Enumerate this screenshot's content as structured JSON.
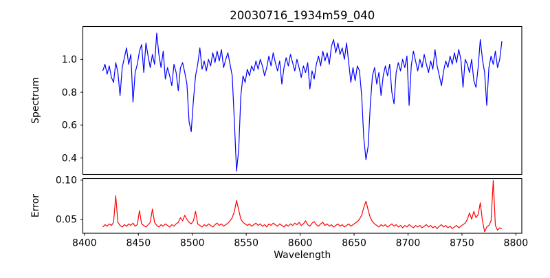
{
  "figure": {
    "title": "20030716_1934m59_040",
    "xlabel": "Wavelength",
    "ylabel_top": "Spectrum",
    "ylabel_bottom": "Error",
    "background_color": "#ffffff",
    "axis_color": "#000000"
  },
  "chart_data": [
    {
      "type": "line",
      "panel": "top",
      "name": "spectrum",
      "ylabel": "Spectrum",
      "line_color": "#0000ff",
      "xlim": [
        8398.5,
        8805.5
      ],
      "ylim": [
        0.3,
        1.2
      ],
      "yticks": [
        0.4,
        0.6,
        0.8,
        1.0
      ],
      "ytick_labels": [
        "0.4",
        "0.6",
        "0.8",
        "1.0"
      ],
      "grid": false,
      "x_start": 8417,
      "x_step": 2,
      "values": [
        0.93,
        0.97,
        0.91,
        0.96,
        0.89,
        0.86,
        0.98,
        0.92,
        0.78,
        0.95,
        1.01,
        1.07,
        0.97,
        1.03,
        0.74,
        0.92,
        0.97,
        1.05,
        1.09,
        0.92,
        1.1,
        1.02,
        0.95,
        1.03,
        0.97,
        1.16,
        1.03,
        0.95,
        1.05,
        0.88,
        0.95,
        0.9,
        0.84,
        0.97,
        0.92,
        0.81,
        0.95,
        0.98,
        0.92,
        0.85,
        0.62,
        0.56,
        0.75,
        0.9,
        0.97,
        1.07,
        0.94,
        0.99,
        0.93,
        1.0,
        0.96,
        1.04,
        0.98,
        1.05,
        0.99,
        1.06,
        0.95,
        1.0,
        1.04,
        0.97,
        0.9,
        0.62,
        0.32,
        0.45,
        0.78,
        0.9,
        0.86,
        0.94,
        0.9,
        0.96,
        0.93,
        0.99,
        0.94,
        1.0,
        0.96,
        0.9,
        0.95,
        1.02,
        0.96,
        1.04,
        0.98,
        0.93,
        0.99,
        0.85,
        0.95,
        1.01,
        0.96,
        1.03,
        0.98,
        0.93,
        1.0,
        0.95,
        0.89,
        0.96,
        0.92,
        0.98,
        0.82,
        0.93,
        0.88,
        0.97,
        1.02,
        0.96,
        1.05,
        0.99,
        1.04,
        0.97,
        1.08,
        1.12,
        1.04,
        1.1,
        1.03,
        1.07,
        1.0,
        1.1,
        0.98,
        0.86,
        0.95,
        0.87,
        0.96,
        0.93,
        0.78,
        0.52,
        0.39,
        0.47,
        0.72,
        0.9,
        0.95,
        0.85,
        0.92,
        0.78,
        0.9,
        0.96,
        0.9,
        0.97,
        0.8,
        0.73,
        0.92,
        0.98,
        0.93,
        1.0,
        0.95,
        1.02,
        0.72,
        0.96,
        1.05,
        0.99,
        0.93,
        1.0,
        0.95,
        1.03,
        0.97,
        0.92,
        0.99,
        0.94,
        1.06,
        0.96,
        0.9,
        0.84,
        0.93,
        0.99,
        0.95,
        1.02,
        0.97,
        1.04,
        0.98,
        1.06,
        1.0,
        0.83,
        1.0,
        0.97,
        0.92,
        1.0,
        0.87,
        0.83,
        0.95,
        1.12,
        1.0,
        0.92,
        0.72,
        0.95,
        1.02,
        0.97,
        1.05,
        0.95,
        1.0,
        1.11
      ]
    },
    {
      "type": "line",
      "panel": "bottom",
      "name": "error",
      "ylabel": "Error",
      "line_color": "#ff0000",
      "xlim": [
        8398.5,
        8805.5
      ],
      "ylim": [
        0.032,
        0.102
      ],
      "yticks": [
        0.05,
        0.1
      ],
      "ytick_labels": [
        "0.05",
        "0.10"
      ],
      "xticks": [
        8400,
        8450,
        8500,
        8550,
        8600,
        8650,
        8700,
        8750,
        8800
      ],
      "xtick_labels": [
        "8400",
        "8450",
        "8500",
        "8550",
        "8600",
        "8650",
        "8700",
        "8750",
        "8800"
      ],
      "grid": false,
      "x_start": 8417,
      "x_step": 2,
      "values": [
        0.04,
        0.043,
        0.041,
        0.044,
        0.042,
        0.046,
        0.08,
        0.046,
        0.042,
        0.04,
        0.043,
        0.041,
        0.044,
        0.042,
        0.045,
        0.041,
        0.043,
        0.061,
        0.044,
        0.042,
        0.04,
        0.043,
        0.046,
        0.063,
        0.046,
        0.042,
        0.04,
        0.043,
        0.041,
        0.044,
        0.042,
        0.04,
        0.043,
        0.041,
        0.044,
        0.046,
        0.052,
        0.048,
        0.055,
        0.05,
        0.046,
        0.044,
        0.048,
        0.06,
        0.044,
        0.042,
        0.04,
        0.043,
        0.041,
        0.044,
        0.042,
        0.04,
        0.043,
        0.045,
        0.042,
        0.044,
        0.041,
        0.043,
        0.045,
        0.048,
        0.052,
        0.06,
        0.074,
        0.062,
        0.05,
        0.046,
        0.044,
        0.042,
        0.044,
        0.041,
        0.043,
        0.045,
        0.042,
        0.044,
        0.041,
        0.043,
        0.04,
        0.044,
        0.042,
        0.045,
        0.043,
        0.041,
        0.044,
        0.042,
        0.04,
        0.043,
        0.041,
        0.044,
        0.042,
        0.045,
        0.043,
        0.046,
        0.042,
        0.044,
        0.048,
        0.043,
        0.041,
        0.045,
        0.047,
        0.043,
        0.041,
        0.044,
        0.046,
        0.042,
        0.044,
        0.041,
        0.043,
        0.04,
        0.042,
        0.044,
        0.041,
        0.043,
        0.04,
        0.042,
        0.044,
        0.041,
        0.043,
        0.045,
        0.047,
        0.05,
        0.055,
        0.065,
        0.073,
        0.062,
        0.052,
        0.047,
        0.044,
        0.042,
        0.04,
        0.043,
        0.041,
        0.043,
        0.04,
        0.042,
        0.044,
        0.041,
        0.043,
        0.04,
        0.042,
        0.039,
        0.042,
        0.04,
        0.043,
        0.041,
        0.039,
        0.042,
        0.04,
        0.042,
        0.039,
        0.041,
        0.043,
        0.04,
        0.042,
        0.039,
        0.041,
        0.038,
        0.041,
        0.043,
        0.04,
        0.042,
        0.039,
        0.041,
        0.038,
        0.04,
        0.042,
        0.039,
        0.041,
        0.043,
        0.045,
        0.05,
        0.058,
        0.05,
        0.06,
        0.052,
        0.056,
        0.071,
        0.048,
        0.034,
        0.04,
        0.042,
        0.048,
        0.0995,
        0.042,
        0.036,
        0.039,
        0.038
      ]
    }
  ]
}
